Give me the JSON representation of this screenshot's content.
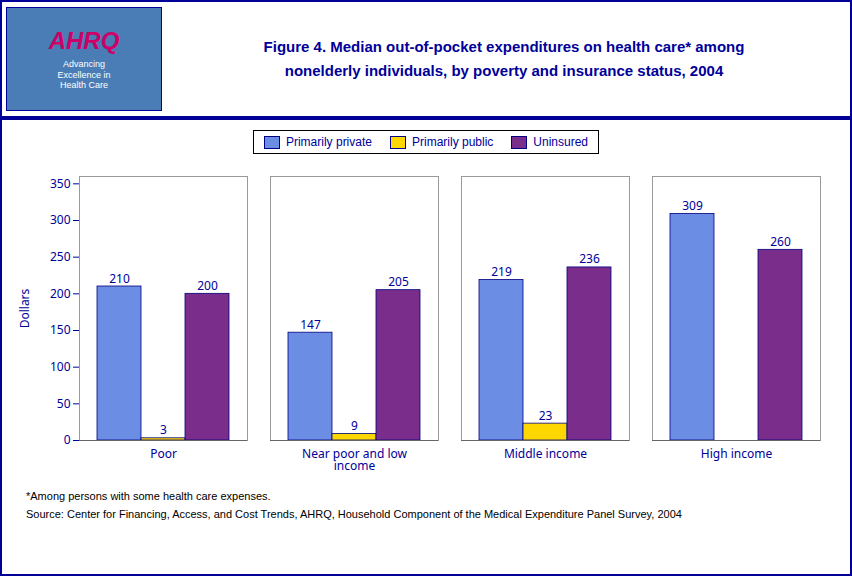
{
  "chart_data": {
    "type": "bar",
    "title": "Figure 4. Median out-of-pocket expenditures on health care* among\nnonelderly individuals, by poverty and insurance status, 2004",
    "annotations": [
      "AHRQ",
      "Advancing\nExcellence in\nHealth Care"
    ],
    "footnotes": [
      "*Among persons with some health care expenses.",
      "Source: Center for Financing, Access, and Cost Trends, AHRQ, Household Component of the Medical Expenditure Panel Survey, 2004"
    ],
    "ylabel": "Dollars",
    "categories": [
      "Poor",
      "Near poor and low\nincome",
      "Middle income",
      "High income"
    ],
    "series": [
      {
        "name": "Primarily private",
        "color": "#6B8DE3",
        "values": [
          210,
          147,
          219,
          309
        ]
      },
      {
        "name": "Primarily public",
        "color": "#FFD700",
        "values": [
          3,
          9,
          23,
          0
        ],
        "value_labels": [
          "3",
          "9",
          "23",
          null
        ]
      },
      {
        "name": "Uninsured",
        "color": "#7B2D8B",
        "values": [
          200,
          205,
          236,
          260
        ]
      }
    ],
    "ylim": [
      0,
      360
    ],
    "yticks": [
      0,
      50,
      100,
      150,
      200,
      250,
      300,
      350
    ],
    "grid": false,
    "legend": "top",
    "data_labels": true
  }
}
